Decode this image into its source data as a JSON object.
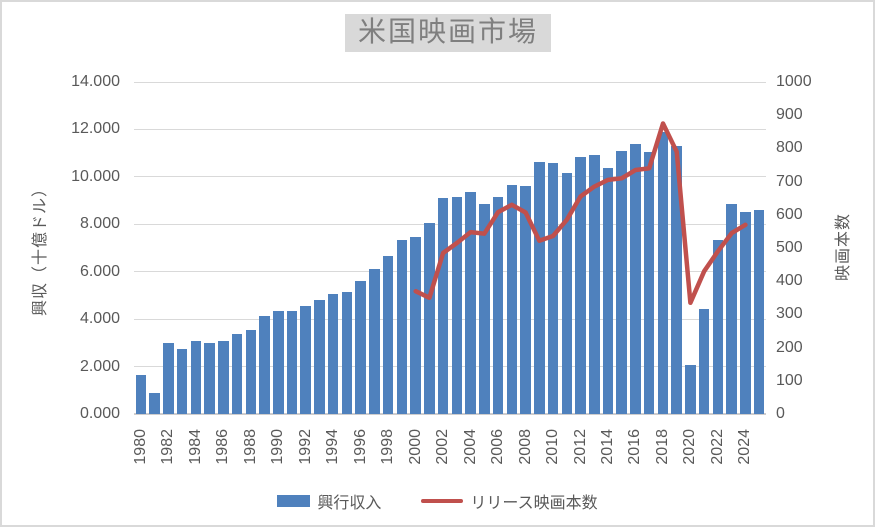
{
  "title": "米国映画市場",
  "left_axis": {
    "title": "興収（十億ドル）",
    "min": 0,
    "max": 14,
    "step": 2,
    "decimals": 3,
    "tick_labels": [
      "0.000",
      "2.000",
      "4.000",
      "6.000",
      "8.000",
      "10.000",
      "12.000",
      "14.000"
    ]
  },
  "right_axis": {
    "title": "映画本数",
    "min": 0,
    "max": 1000,
    "step": 100,
    "tick_labels": [
      "0",
      "100",
      "200",
      "300",
      "400",
      "500",
      "600",
      "700",
      "800",
      "900",
      "1000"
    ]
  },
  "x_axis": {
    "first_label": 1980,
    "last_label": 2024,
    "label_every": 2,
    "rotation": -90
  },
  "legend": {
    "items": [
      {
        "label": "興行収入",
        "type": "bar",
        "color": "#4f81bd"
      },
      {
        "label": "リリース映画本数",
        "type": "line",
        "color": "#c0504d"
      }
    ],
    "position": "bottom"
  },
  "colors": {
    "bar_fill": "#4f81bd",
    "line_stroke": "#c0504d",
    "gridline": "#d9d9d9",
    "axis_line": "#cfcdcd",
    "tick_text": "#595959",
    "title_text": "#7f7f7f",
    "title_background": "#d9d9d9",
    "chart_border": "#d9d9d9"
  },
  "chart_data": {
    "type": "bar",
    "title": "米国映画市場",
    "categories": [
      1980,
      1981,
      1982,
      1983,
      1984,
      1985,
      1986,
      1987,
      1988,
      1989,
      1990,
      1991,
      1992,
      1993,
      1994,
      1995,
      1996,
      1997,
      1998,
      1999,
      2000,
      2001,
      2002,
      2003,
      2004,
      2005,
      2006,
      2007,
      2008,
      2009,
      2010,
      2011,
      2012,
      2013,
      2014,
      2015,
      2016,
      2017,
      2018,
      2019,
      2020,
      2021,
      2022,
      2023,
      2024,
      2025
    ],
    "series": [
      {
        "name": "興行収入",
        "type": "bar",
        "axis": "left",
        "start_year": 1980,
        "values": [
          1.65,
          0.88,
          2.98,
          2.73,
          3.08,
          3.01,
          3.07,
          3.38,
          3.55,
          4.13,
          4.35,
          4.35,
          4.56,
          4.8,
          5.06,
          5.13,
          5.62,
          6.11,
          6.65,
          7.34,
          7.47,
          8.06,
          9.12,
          9.16,
          9.35,
          8.84,
          9.15,
          9.66,
          9.6,
          10.61,
          10.57,
          10.15,
          10.85,
          10.92,
          10.36,
          11.09,
          11.37,
          11.06,
          11.91,
          11.3,
          2.05,
          4.44,
          7.33,
          8.87,
          8.52,
          8.6
        ]
      },
      {
        "name": "リリース映画本数",
        "type": "line",
        "axis": "right",
        "start_year": 2000,
        "values": [
          370,
          350,
          485,
          515,
          548,
          543,
          608,
          630,
          607,
          522,
          536,
          585,
          655,
          685,
          705,
          710,
          735,
          740,
          875,
          790,
          335,
          430,
          490,
          545,
          570
        ]
      }
    ],
    "xlabel": "",
    "left_ylabel": "興収（十億ドル）",
    "right_ylabel": "映画本数",
    "left_ylim": [
      0,
      14
    ],
    "right_ylim": [
      0,
      1000
    ],
    "grid": true,
    "legend_position": "bottom"
  }
}
